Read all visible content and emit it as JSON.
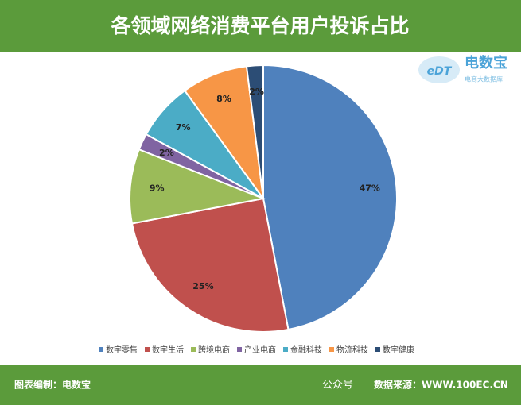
{
  "chart_data": {
    "type": "pie",
    "title": "各领域网络消费平台用户投诉占比",
    "categories": [
      "数字零售",
      "数字生活",
      "跨境电商",
      "产业电商",
      "金融科技",
      "物流科技",
      "数字健康"
    ],
    "values": [
      47,
      25,
      9,
      2,
      7,
      8,
      2
    ],
    "value_labels": [
      "47%",
      "25%",
      "9%",
      "2%",
      "7%",
      "8%",
      "2%"
    ],
    "colors": [
      "#4f81bd",
      "#c0504d",
      "#9bbb59",
      "#8064a2",
      "#4bacc6",
      "#f79646",
      "#2c4d75"
    ],
    "legend": "bottom"
  },
  "logo": {
    "name": "电数宝",
    "tagline": "电商大数据库"
  },
  "footer": {
    "credit": "图表编制：电数宝",
    "watermark": "公众号",
    "source": "数据来源：WWW.100EC.CN"
  }
}
